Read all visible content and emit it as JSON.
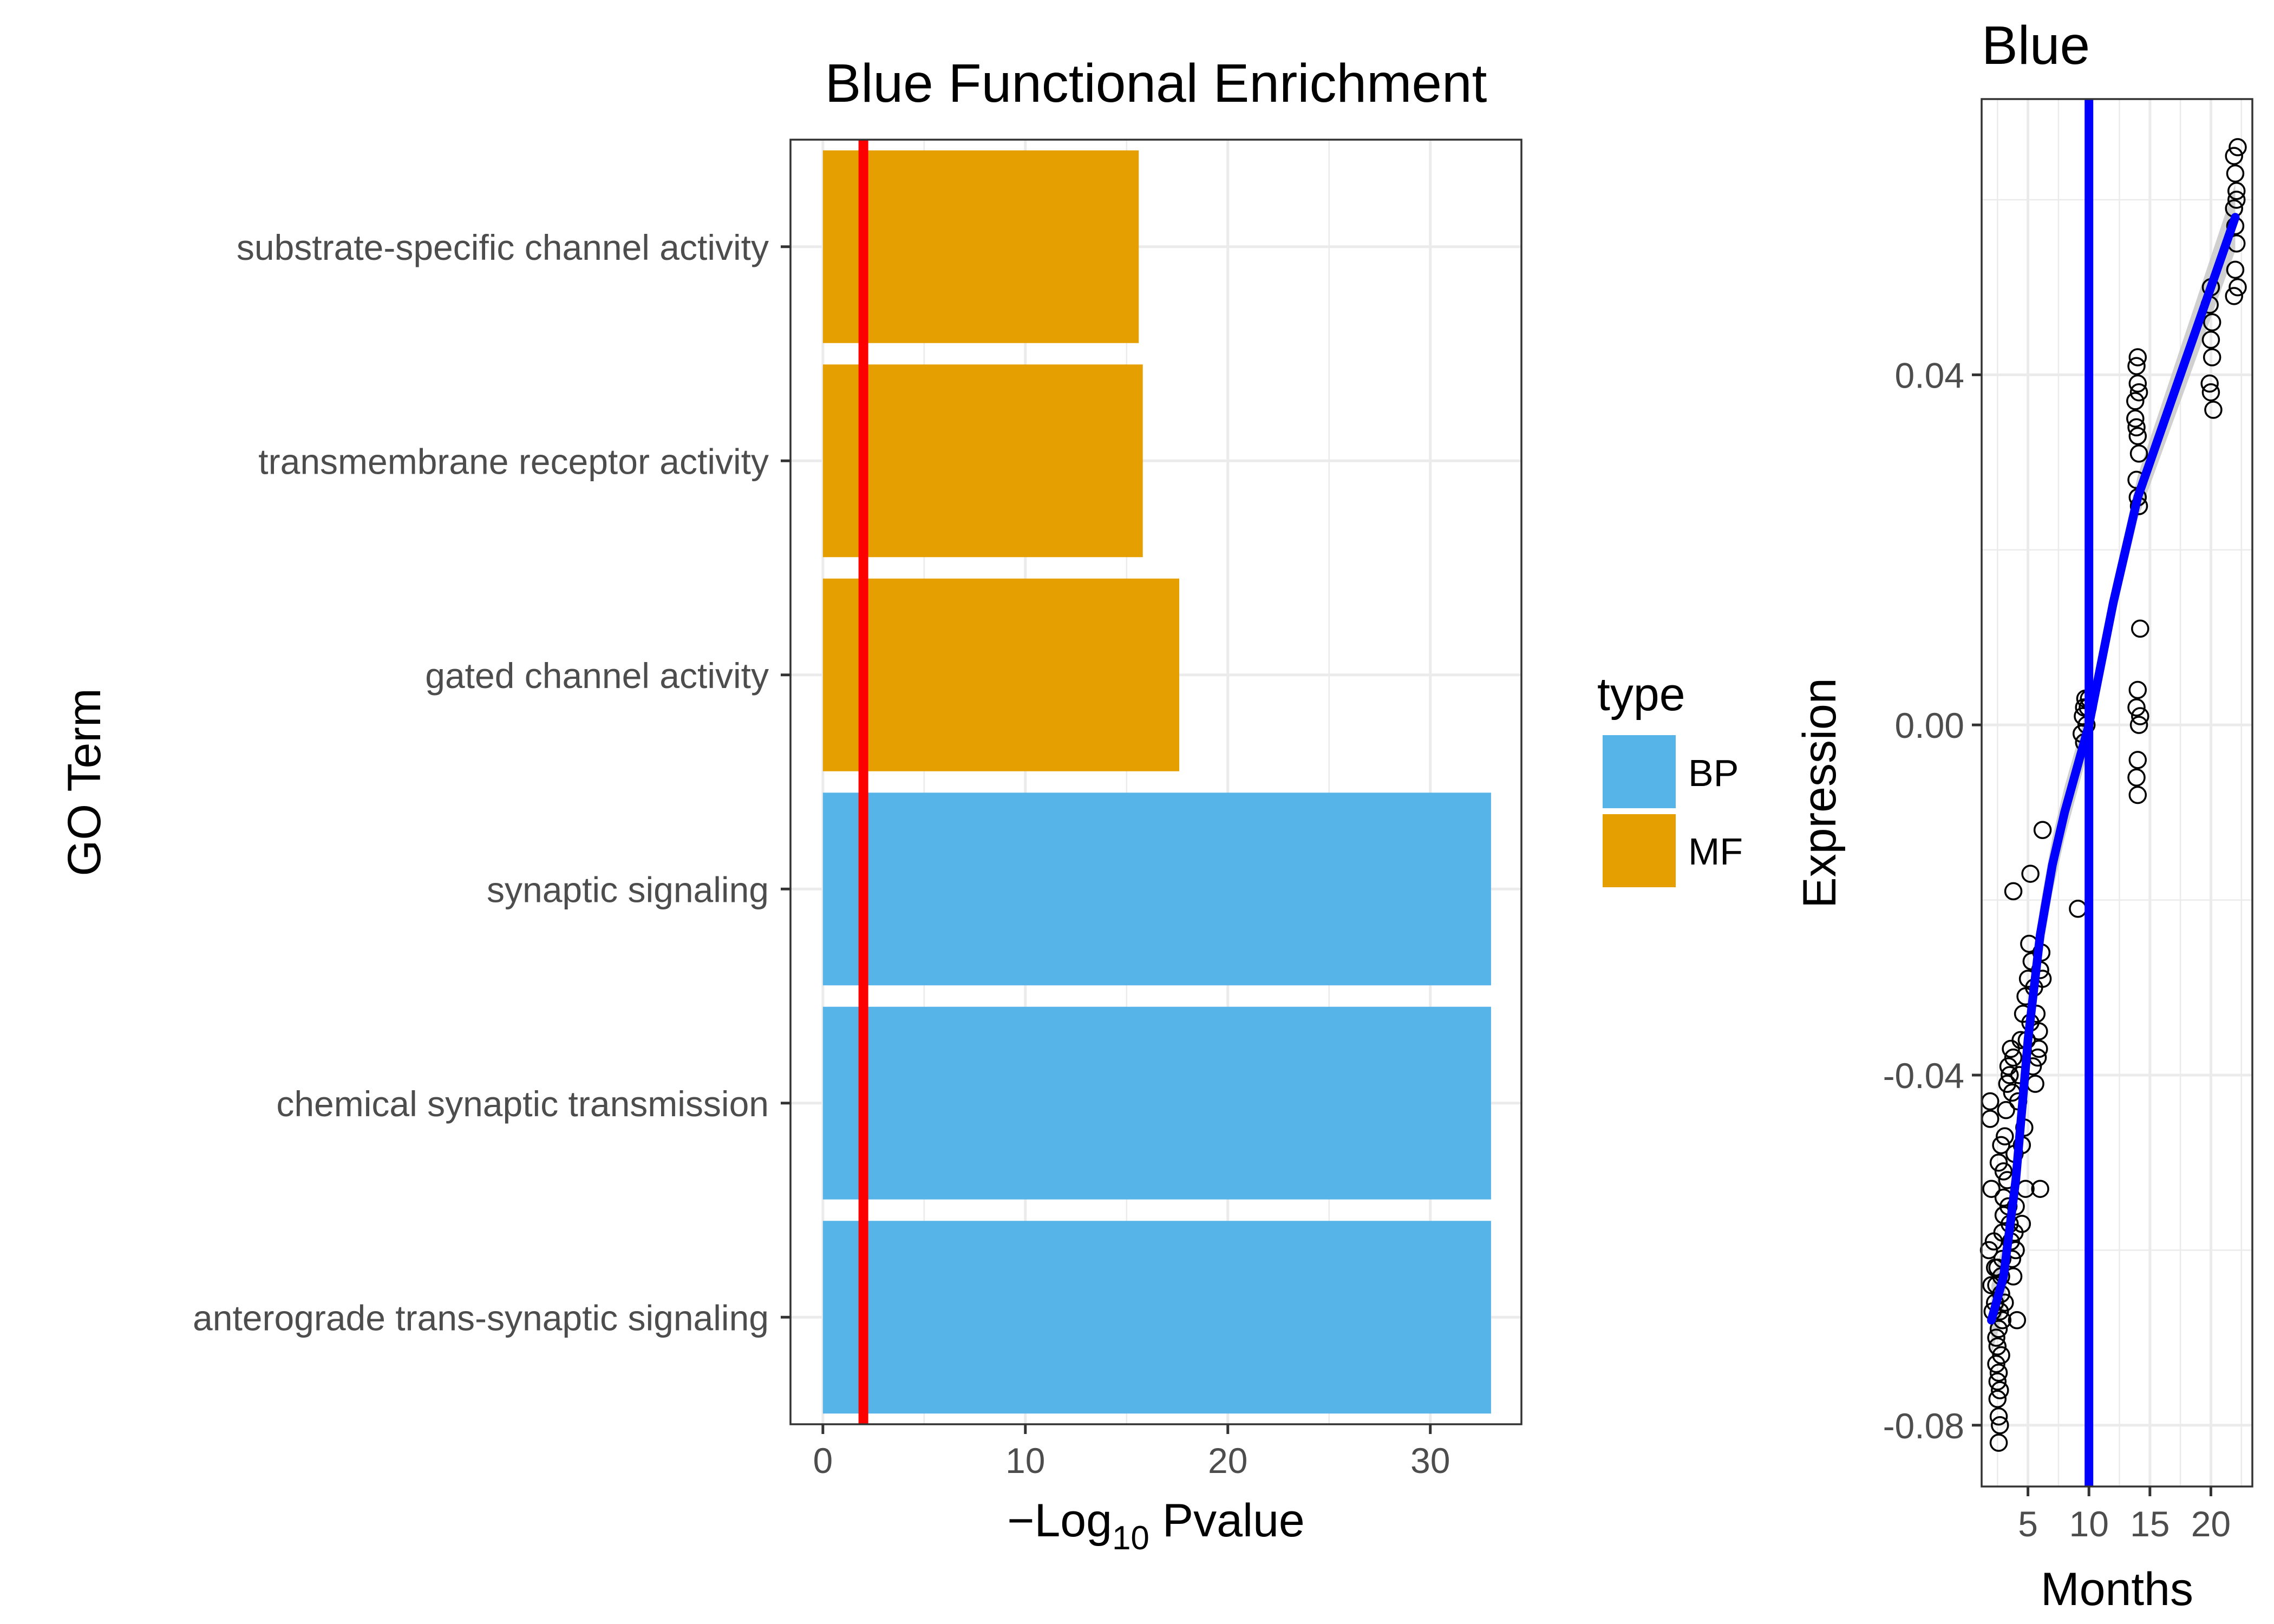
{
  "chart_data": [
    {
      "type": "bar",
      "orientation": "horizontal",
      "title": "Blue Functional Enrichment",
      "xlabel": {
        "prefix": "−Log",
        "subscript": "10",
        "suffix": " Pvalue"
      },
      "ylabel": "GO Term",
      "xlim": [
        -1.6,
        34.5
      ],
      "xticks": [
        "0",
        "10",
        "20",
        "30"
      ],
      "grid": true,
      "categories": [
        "substrate-specific channel activity",
        "transmembrane receptor activity",
        "gated channel activity",
        "synaptic signaling",
        "chemical synaptic transmission",
        "anterograde trans-synaptic signaling"
      ],
      "values": [
        15.6,
        15.8,
        17.6,
        33.0,
        33.0,
        33.0
      ],
      "types": [
        "MF",
        "MF",
        "MF",
        "BP",
        "BP",
        "BP"
      ],
      "reference_line": {
        "value": 2.0,
        "color": "#ff0000"
      },
      "legend": {
        "title": "type",
        "placement": "right",
        "entries": [
          {
            "label": "BP",
            "color": "#56b4e9"
          },
          {
            "label": "MF",
            "color": "#e69f00"
          }
        ]
      }
    },
    {
      "type": "scatter",
      "title": "Blue",
      "xlabel": "Months",
      "ylabel": "Expression",
      "xlim": [
        1.2,
        23.4
      ],
      "ylim": [
        -0.087,
        0.0715
      ],
      "xticks": [
        "5",
        "10",
        "15",
        "20"
      ],
      "yticks": [
        "0.04",
        "0.00",
        "-0.04",
        "-0.08"
      ],
      "grid": true,
      "vertical_line": {
        "value": 10,
        "color": "#0000ff"
      },
      "trend_line": {
        "color": "#0000ff",
        "band_color": "#c8c8c8",
        "points": [
          [
            2,
            -0.068
          ],
          [
            3,
            -0.063
          ],
          [
            4,
            -0.052
          ],
          [
            5,
            -0.036
          ],
          [
            6,
            -0.024
          ],
          [
            7,
            -0.016
          ],
          [
            8,
            -0.01
          ],
          [
            9,
            -0.005
          ],
          [
            10,
            0.0
          ],
          [
            11,
            0.007
          ],
          [
            12,
            0.014
          ],
          [
            13,
            0.02
          ],
          [
            14,
            0.026
          ],
          [
            15,
            0.03
          ],
          [
            16,
            0.034
          ],
          [
            17,
            0.038
          ],
          [
            18,
            0.042
          ],
          [
            19,
            0.046
          ],
          [
            20,
            0.05
          ],
          [
            21,
            0.054
          ],
          [
            22,
            0.058
          ]
        ]
      },
      "points": [
        [
          1.8,
          -0.06
        ],
        [
          1.9,
          -0.045
        ],
        [
          2.0,
          -0.053
        ],
        [
          2.1,
          -0.067
        ],
        [
          2.0,
          -0.064
        ],
        [
          1.9,
          -0.043
        ],
        [
          2.2,
          -0.059
        ],
        [
          2.3,
          -0.062
        ],
        [
          2.3,
          -0.066
        ],
        [
          2.4,
          -0.07
        ],
        [
          2.4,
          -0.073
        ],
        [
          2.5,
          -0.075
        ],
        [
          2.5,
          -0.077
        ],
        [
          2.6,
          -0.079
        ],
        [
          2.6,
          -0.082
        ],
        [
          2.7,
          -0.08
        ],
        [
          2.6,
          -0.069
        ],
        [
          2.7,
          -0.067
        ],
        [
          2.8,
          -0.065
        ],
        [
          2.8,
          -0.063
        ],
        [
          2.9,
          -0.061
        ],
        [
          2.9,
          -0.058
        ],
        [
          3.0,
          -0.056
        ],
        [
          3.0,
          -0.054
        ],
        [
          2.5,
          -0.071
        ],
        [
          2.6,
          -0.074
        ],
        [
          2.7,
          -0.076
        ],
        [
          2.8,
          -0.072
        ],
        [
          2.9,
          -0.068
        ],
        [
          3.1,
          -0.066
        ],
        [
          2.4,
          -0.064
        ],
        [
          2.5,
          -0.062
        ],
        [
          2.6,
          -0.05
        ],
        [
          2.8,
          -0.048
        ],
        [
          3.0,
          -0.051
        ],
        [
          3.1,
          -0.047
        ],
        [
          3.2,
          -0.044
        ],
        [
          3.3,
          -0.041
        ],
        [
          3.4,
          -0.039
        ],
        [
          3.5,
          -0.04
        ],
        [
          3.6,
          -0.037
        ],
        [
          3.7,
          -0.042
        ],
        [
          3.8,
          -0.038
        ],
        [
          3.3,
          -0.052
        ],
        [
          3.4,
          -0.055
        ],
        [
          3.5,
          -0.057
        ],
        [
          3.6,
          -0.059
        ],
        [
          3.7,
          -0.061
        ],
        [
          3.8,
          -0.063
        ],
        [
          3.9,
          -0.058
        ],
        [
          4.0,
          -0.06
        ],
        [
          4.1,
          -0.068
        ],
        [
          4.0,
          -0.055
        ],
        [
          3.9,
          -0.049
        ],
        [
          4.3,
          -0.04
        ],
        [
          4.4,
          -0.036
        ],
        [
          4.6,
          -0.033
        ],
        [
          4.8,
          -0.031
        ],
        [
          5.0,
          -0.029
        ],
        [
          5.1,
          -0.025
        ],
        [
          5.3,
          -0.027
        ],
        [
          5.5,
          -0.03
        ],
        [
          5.7,
          -0.033
        ],
        [
          5.9,
          -0.035
        ],
        [
          6.0,
          -0.028
        ],
        [
          6.1,
          -0.026
        ],
        [
          5.8,
          -0.038
        ],
        [
          5.6,
          -0.041
        ],
        [
          5.4,
          -0.039
        ],
        [
          5.9,
          -0.037
        ],
        [
          6.2,
          -0.029
        ],
        [
          5.2,
          -0.034
        ],
        [
          4.9,
          -0.036
        ],
        [
          4.7,
          -0.046
        ],
        [
          4.5,
          -0.048
        ],
        [
          4.2,
          -0.043
        ],
        [
          4.5,
          -0.057
        ],
        [
          4.8,
          -0.053
        ],
        [
          6.0,
          -0.053
        ],
        [
          3.8,
          -0.019
        ],
        [
          5.2,
          -0.017
        ],
        [
          6.2,
          -0.012
        ],
        [
          9.1,
          -0.021
        ],
        [
          9.4,
          -0.001
        ],
        [
          9.5,
          0.001
        ],
        [
          9.6,
          0.002
        ],
        [
          9.7,
          0.003
        ],
        [
          9.8,
          0.0
        ],
        [
          9.9,
          0.002
        ],
        [
          10.0,
          0.003
        ],
        [
          9.6,
          -0.002
        ],
        [
          13.9,
          0.041
        ],
        [
          14.0,
          0.042
        ],
        [
          14.0,
          0.039
        ],
        [
          14.1,
          0.038
        ],
        [
          13.8,
          0.035
        ],
        [
          13.9,
          0.034
        ],
        [
          14.0,
          0.033
        ],
        [
          14.1,
          0.031
        ],
        [
          13.9,
          0.028
        ],
        [
          14.0,
          0.026
        ],
        [
          14.1,
          0.025
        ],
        [
          13.8,
          0.037
        ],
        [
          14.2,
          0.011
        ],
        [
          14.0,
          0.004
        ],
        [
          13.9,
          0.002
        ],
        [
          14.1,
          0.0
        ],
        [
          14.0,
          -0.004
        ],
        [
          13.9,
          -0.006
        ],
        [
          14.0,
          -0.008
        ],
        [
          14.2,
          0.001
        ],
        [
          20.0,
          0.05
        ],
        [
          20.1,
          0.046
        ],
        [
          20.0,
          0.044
        ],
        [
          20.1,
          0.042
        ],
        [
          19.9,
          0.039
        ],
        [
          20.0,
          0.038
        ],
        [
          20.2,
          0.036
        ],
        [
          19.9,
          0.048
        ],
        [
          21.9,
          0.065
        ],
        [
          22.0,
          0.063
        ],
        [
          22.1,
          0.061
        ],
        [
          21.9,
          0.059
        ],
        [
          22.0,
          0.057
        ],
        [
          22.1,
          0.055
        ],
        [
          22.0,
          0.052
        ],
        [
          21.9,
          0.049
        ],
        [
          22.2,
          0.066
        ],
        [
          22.1,
          0.06
        ],
        [
          22.2,
          0.05
        ]
      ]
    }
  ]
}
